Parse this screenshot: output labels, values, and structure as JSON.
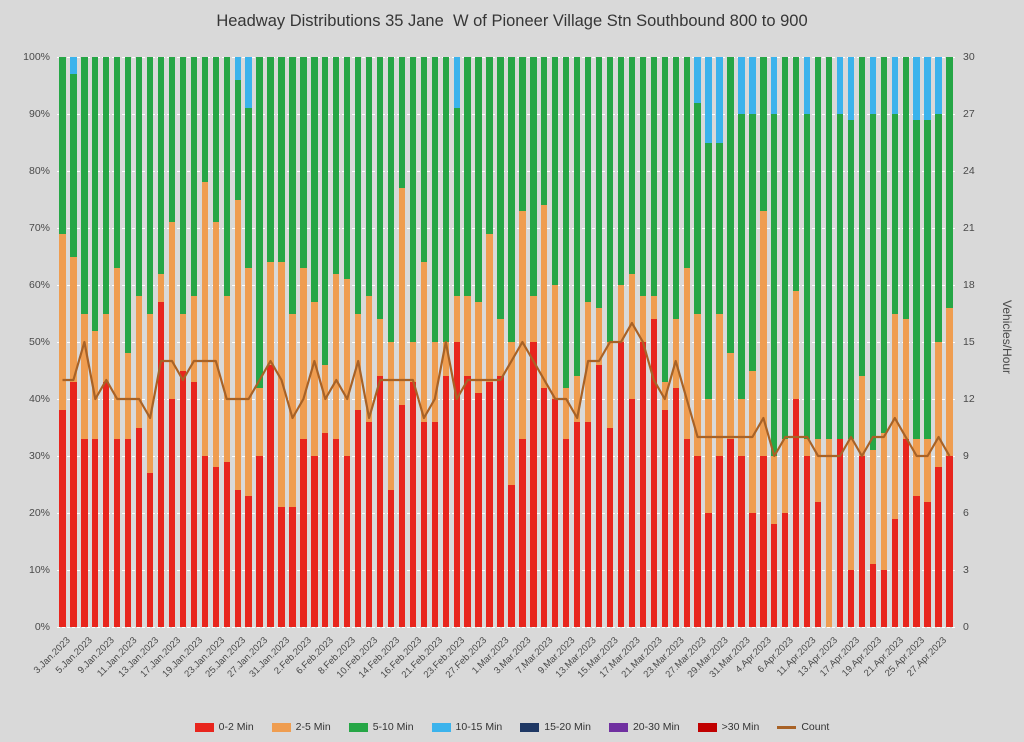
{
  "chart_data": {
    "type": "bar",
    "stacked": true,
    "overlay_line_series": "Count",
    "title": "Headway Distributions 35 Jane  W of Pioneer Village Stn Southbound 800 to 900",
    "ylabel_right": "Vehicles/Hour",
    "axis_left": {
      "min": 0,
      "max": 100,
      "step": 10,
      "suffix": "%"
    },
    "axis_right": {
      "min": 0,
      "max": 30,
      "step": 3
    },
    "grid": "horizontal-dashed-white",
    "legend_position": "bottom",
    "background": "#D9D9D9",
    "legend": [
      {
        "label": "0-2 Min",
        "color": "#E8251D",
        "type": "box"
      },
      {
        "label": "2-5 Min",
        "color": "#EF9D50",
        "type": "box"
      },
      {
        "label": "5-10 Min",
        "color": "#26A646",
        "type": "box"
      },
      {
        "label": "10-15 Min",
        "color": "#3BB3EC",
        "type": "box"
      },
      {
        "label": "15-20 Min",
        "color": "#1F3864",
        "type": "box"
      },
      {
        "label": "20-30 Min",
        "color": "#7030A0",
        "type": "box"
      },
      {
        "label": ">30 Min",
        "color": "#C00000",
        "type": "box"
      },
      {
        "label": "Count",
        "color": "#A86226",
        "type": "line"
      }
    ],
    "segment_series_order": [
      "0-2 Min",
      "2-5 Min",
      "5-10 Min",
      "10-15 Min"
    ],
    "bars": [
      {
        "label": "3.Jan.2023",
        "seg": [
          38,
          31,
          31,
          0
        ],
        "count": 13
      },
      {
        "label": "",
        "seg": [
          43,
          22,
          32,
          3
        ],
        "count": 13
      },
      {
        "label": "5.Jan.2023",
        "seg": [
          33,
          22,
          45,
          0
        ],
        "count": 15
      },
      {
        "label": "",
        "seg": [
          33,
          19,
          48,
          0
        ],
        "count": 12
      },
      {
        "label": "9.Jan.2023",
        "seg": [
          43,
          12,
          45,
          0
        ],
        "count": 13
      },
      {
        "label": "",
        "seg": [
          33,
          30,
          37,
          0
        ],
        "count": 12
      },
      {
        "label": "11.Jan.2023",
        "seg": [
          33,
          15,
          52,
          0
        ],
        "count": 12
      },
      {
        "label": "",
        "seg": [
          35,
          23,
          42,
          0
        ],
        "count": 12
      },
      {
        "label": "13.Jan.2023",
        "seg": [
          27,
          28,
          45,
          0
        ],
        "count": 11
      },
      {
        "label": "",
        "seg": [
          57,
          5,
          38,
          0
        ],
        "count": 14
      },
      {
        "label": "17.Jan.2023",
        "seg": [
          40,
          31,
          29,
          0
        ],
        "count": 14
      },
      {
        "label": "",
        "seg": [
          45,
          10,
          45,
          0
        ],
        "count": 13
      },
      {
        "label": "19.Jan.2023",
        "seg": [
          43,
          15,
          42,
          0
        ],
        "count": 14
      },
      {
        "label": "",
        "seg": [
          30,
          48,
          22,
          0
        ],
        "count": 14
      },
      {
        "label": "23.Jan.2023",
        "seg": [
          28,
          43,
          29,
          0
        ],
        "count": 14
      },
      {
        "label": "",
        "seg": [
          29,
          29,
          42,
          0
        ],
        "count": 12
      },
      {
        "label": "25.Jan.2023",
        "seg": [
          24,
          51,
          21,
          4
        ],
        "count": 12
      },
      {
        "label": "",
        "seg": [
          23,
          40,
          28,
          9
        ],
        "count": 12
      },
      {
        "label": "27.Jan.2023",
        "seg": [
          30,
          12,
          58,
          0
        ],
        "count": 13
      },
      {
        "label": "",
        "seg": [
          46,
          18,
          36,
          0
        ],
        "count": 14
      },
      {
        "label": "31.Jan.2023",
        "seg": [
          21,
          43,
          36,
          0
        ],
        "count": 13
      },
      {
        "label": "",
        "seg": [
          21,
          34,
          45,
          0
        ],
        "count": 11
      },
      {
        "label": "2.Feb.2023",
        "seg": [
          33,
          30,
          37,
          0
        ],
        "count": 12
      },
      {
        "label": "",
        "seg": [
          30,
          27,
          43,
          0
        ],
        "count": 14
      },
      {
        "label": "6.Feb.2023",
        "seg": [
          34,
          12,
          54,
          0
        ],
        "count": 12
      },
      {
        "label": "",
        "seg": [
          33,
          29,
          38,
          0
        ],
        "count": 13
      },
      {
        "label": "8.Feb.2023",
        "seg": [
          30,
          31,
          39,
          0
        ],
        "count": 12
      },
      {
        "label": "",
        "seg": [
          38,
          17,
          45,
          0
        ],
        "count": 14
      },
      {
        "label": "10.Feb.2023",
        "seg": [
          36,
          22,
          42,
          0
        ],
        "count": 11
      },
      {
        "label": "",
        "seg": [
          44,
          10,
          46,
          0
        ],
        "count": 13
      },
      {
        "label": "14.Feb.2023",
        "seg": [
          24,
          26,
          50,
          0
        ],
        "count": 13
      },
      {
        "label": "",
        "seg": [
          39,
          38,
          23,
          0
        ],
        "count": 13
      },
      {
        "label": "16.Feb.2023",
        "seg": [
          43,
          7,
          50,
          0
        ],
        "count": 13
      },
      {
        "label": "",
        "seg": [
          36,
          28,
          36,
          0
        ],
        "count": 11
      },
      {
        "label": "21.Feb.2023",
        "seg": [
          36,
          14,
          50,
          0
        ],
        "count": 12
      },
      {
        "label": "",
        "seg": [
          44,
          6,
          50,
          0
        ],
        "count": 15
      },
      {
        "label": "23.Feb.2023",
        "seg": [
          50,
          8,
          33,
          9
        ],
        "count": 12
      },
      {
        "label": "",
        "seg": [
          44,
          14,
          42,
          0
        ],
        "count": 13
      },
      {
        "label": "27.Feb.2023",
        "seg": [
          41,
          16,
          43,
          0
        ],
        "count": 13
      },
      {
        "label": "",
        "seg": [
          43,
          26,
          31,
          0
        ],
        "count": 13
      },
      {
        "label": "1.Mar.2023",
        "seg": [
          44,
          10,
          46,
          0
        ],
        "count": 13
      },
      {
        "label": "",
        "seg": [
          25,
          25,
          50,
          0
        ],
        "count": 14
      },
      {
        "label": "3.Mar.2023",
        "seg": [
          33,
          40,
          27,
          0
        ],
        "count": 15
      },
      {
        "label": "",
        "seg": [
          50,
          8,
          42,
          0
        ],
        "count": 14
      },
      {
        "label": "7.Mar.2023",
        "seg": [
          42,
          32,
          26,
          0
        ],
        "count": 13
      },
      {
        "label": "",
        "seg": [
          40,
          20,
          40,
          0
        ],
        "count": 12
      },
      {
        "label": "9.Mar.2023",
        "seg": [
          33,
          9,
          58,
          0
        ],
        "count": 12
      },
      {
        "label": "",
        "seg": [
          36,
          8,
          56,
          0
        ],
        "count": 11
      },
      {
        "label": "13.Mar.2023",
        "seg": [
          36,
          21,
          43,
          0
        ],
        "count": 14
      },
      {
        "label": "",
        "seg": [
          46,
          10,
          44,
          0
        ],
        "count": 14
      },
      {
        "label": "15.Mar.2023",
        "seg": [
          35,
          15,
          50,
          0
        ],
        "count": 15
      },
      {
        "label": "",
        "seg": [
          50,
          10,
          40,
          0
        ],
        "count": 15
      },
      {
        "label": "17.Mar.2023",
        "seg": [
          40,
          22,
          38,
          0
        ],
        "count": 16
      },
      {
        "label": "",
        "seg": [
          50,
          8,
          42,
          0
        ],
        "count": 15
      },
      {
        "label": "21.Mar.2023",
        "seg": [
          54,
          4,
          42,
          0
        ],
        "count": 13
      },
      {
        "label": "",
        "seg": [
          38,
          5,
          57,
          0
        ],
        "count": 12
      },
      {
        "label": "23.Mar.2023",
        "seg": [
          42,
          12,
          46,
          0
        ],
        "count": 14
      },
      {
        "label": "",
        "seg": [
          33,
          30,
          37,
          0
        ],
        "count": 12
      },
      {
        "label": "27.Mar.2023",
        "seg": [
          30,
          25,
          37,
          8
        ],
        "count": 10
      },
      {
        "label": "",
        "seg": [
          20,
          20,
          45,
          15
        ],
        "count": 10
      },
      {
        "label": "29.Mar.2023",
        "seg": [
          30,
          25,
          30,
          15
        ],
        "count": 10
      },
      {
        "label": "",
        "seg": [
          33,
          15,
          52,
          0
        ],
        "count": 10
      },
      {
        "label": "31.Mar.2023",
        "seg": [
          30,
          10,
          50,
          10
        ],
        "count": 10
      },
      {
        "label": "",
        "seg": [
          20,
          25,
          45,
          10
        ],
        "count": 10
      },
      {
        "label": "4.Apr.2023",
        "seg": [
          30,
          43,
          27,
          0
        ],
        "count": 11
      },
      {
        "label": "",
        "seg": [
          18,
          12,
          60,
          10
        ],
        "count": 9
      },
      {
        "label": "6.Apr.2023",
        "seg": [
          20,
          13,
          67,
          0
        ],
        "count": 10
      },
      {
        "label": "",
        "seg": [
          40,
          19,
          41,
          0
        ],
        "count": 10
      },
      {
        "label": "11.Apr.2023",
        "seg": [
          30,
          3,
          57,
          10
        ],
        "count": 10
      },
      {
        "label": "",
        "seg": [
          22,
          11,
          67,
          0
        ],
        "count": 9
      },
      {
        "label": "13.Apr.2023",
        "seg": [
          0,
          33,
          67,
          0
        ],
        "count": 9
      },
      {
        "label": "",
        "seg": [
          33,
          0,
          57,
          10
        ],
        "count": 9
      },
      {
        "label": "17.Apr.2023",
        "seg": [
          10,
          23,
          56,
          11
        ],
        "count": 10
      },
      {
        "label": "",
        "seg": [
          30,
          14,
          56,
          0
        ],
        "count": 9
      },
      {
        "label": "19.Apr.2023",
        "seg": [
          11,
          20,
          59,
          10
        ],
        "count": 10
      },
      {
        "label": "",
        "seg": [
          10,
          24,
          66,
          0
        ],
        "count": 10
      },
      {
        "label": "21.Apr.2023",
        "seg": [
          19,
          36,
          35,
          10
        ],
        "count": 11
      },
      {
        "label": "",
        "seg": [
          33,
          21,
          46,
          0
        ],
        "count": 10
      },
      {
        "label": "25.Apr.2023",
        "seg": [
          23,
          10,
          56,
          11
        ],
        "count": 9
      },
      {
        "label": "",
        "seg": [
          22,
          11,
          56,
          11
        ],
        "count": 9
      },
      {
        "label": "27.Apr.2023",
        "seg": [
          28,
          22,
          40,
          10
        ],
        "count": 10
      },
      {
        "label": "",
        "seg": [
          30,
          26,
          44,
          0
        ],
        "count": 9
      }
    ]
  }
}
